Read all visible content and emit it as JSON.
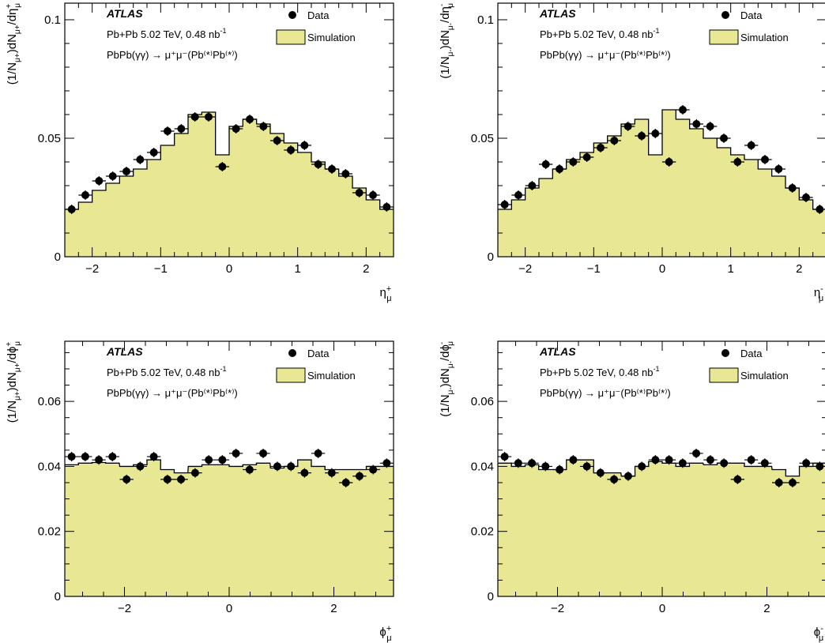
{
  "atlas_label": "ATLAS",
  "lumi_text": "Pb+Pb 5.02 TeV, 0.48 nb",
  "lumi_sup": "-1",
  "process_text": "PbPb(γγ) → μ⁺μ⁻(Pb⁽*⁾Pb⁽*⁾)",
  "legend": {
    "data": "Data",
    "simulation": "Simulation"
  },
  "colors": {
    "simulation_fill": "#E8E894",
    "data": "#000000"
  },
  "chart_data": [
    {
      "type": "histogram",
      "title": "",
      "xlabel": "η_μ^+",
      "ylabel": "(1/N_μ+)dN_μ+/dη_μ^+",
      "xlim": [
        -2.4,
        2.4
      ],
      "ylim": [
        0,
        0.107
      ],
      "xticks": [
        -2,
        -1,
        0,
        1,
        2
      ],
      "yticks": [
        {
          "v": 0,
          "label": "0"
        },
        {
          "v": 0.05,
          "label": "0.05"
        },
        {
          "v": 0.1,
          "label": "0.1"
        }
      ],
      "x_centers": [
        -2.3,
        -2.1,
        -1.9,
        -1.7,
        -1.5,
        -1.3,
        -1.1,
        -0.9,
        -0.7,
        -0.5,
        -0.3,
        -0.1,
        0.1,
        0.3,
        0.5,
        0.7,
        0.9,
        1.1,
        1.3,
        1.5,
        1.7,
        1.9,
        2.1,
        2.3
      ],
      "series": [
        {
          "name": "Simulation",
          "values": [
            0.02,
            0.023,
            0.028,
            0.031,
            0.034,
            0.037,
            0.041,
            0.047,
            0.052,
            0.06,
            0.061,
            0.043,
            0.055,
            0.058,
            0.056,
            0.052,
            0.048,
            0.044,
            0.04,
            0.037,
            0.034,
            0.029,
            0.024,
            0.02
          ]
        },
        {
          "name": "Data",
          "values": [
            0.02,
            0.026,
            0.032,
            0.034,
            0.036,
            0.041,
            0.044,
            0.053,
            0.054,
            0.059,
            0.059,
            0.038,
            0.054,
            0.058,
            0.055,
            0.049,
            0.045,
            0.047,
            0.039,
            0.037,
            0.035,
            0.027,
            0.026,
            0.021
          ]
        }
      ]
    },
    {
      "type": "histogram",
      "title": "",
      "xlabel": "η_μ^-",
      "ylabel": "(1/N_μ-)dN_μ-/dη_μ^-",
      "xlim": [
        -2.4,
        2.4
      ],
      "ylim": [
        0,
        0.107
      ],
      "xticks": [
        -2,
        -1,
        0,
        1,
        2
      ],
      "yticks": [
        {
          "v": 0,
          "label": "0"
        },
        {
          "v": 0.05,
          "label": "0.05"
        },
        {
          "v": 0.1,
          "label": "0.1"
        }
      ],
      "x_centers": [
        -2.3,
        -2.1,
        -1.9,
        -1.7,
        -1.5,
        -1.3,
        -1.1,
        -0.9,
        -0.7,
        -0.5,
        -0.3,
        -0.1,
        0.1,
        0.3,
        0.5,
        0.7,
        0.9,
        1.1,
        1.3,
        1.5,
        1.7,
        1.9,
        2.1,
        2.3
      ],
      "series": [
        {
          "name": "Simulation",
          "values": [
            0.02,
            0.024,
            0.029,
            0.033,
            0.037,
            0.041,
            0.044,
            0.048,
            0.051,
            0.056,
            0.058,
            0.043,
            0.062,
            0.058,
            0.054,
            0.05,
            0.046,
            0.043,
            0.041,
            0.037,
            0.034,
            0.029,
            0.024,
            0.02
          ]
        },
        {
          "name": "Data",
          "values": [
            0.022,
            0.026,
            0.03,
            0.039,
            0.037,
            0.04,
            0.042,
            0.046,
            0.049,
            0.055,
            0.051,
            0.052,
            0.04,
            0.062,
            0.056,
            0.055,
            0.05,
            0.04,
            0.047,
            0.041,
            0.037,
            0.029,
            0.025,
            0.02
          ]
        }
      ]
    },
    {
      "type": "histogram",
      "title": "",
      "xlabel": "ϕ_μ^+",
      "ylabel": "(1/N_μ+)dN_μ+/dϕ_μ^+",
      "xlim": [
        -3.14,
        3.14
      ],
      "ylim": [
        0,
        0.0785
      ],
      "xticks": [
        -2,
        0,
        2
      ],
      "yticks": [
        {
          "v": 0,
          "label": "0"
        },
        {
          "v": 0.02,
          "label": "0.02"
        },
        {
          "v": 0.04,
          "label": "0.04"
        },
        {
          "v": 0.06,
          "label": "0.06"
        }
      ],
      "x_centers": [
        -3.01,
        -2.75,
        -2.49,
        -2.23,
        -1.96,
        -1.7,
        -1.44,
        -1.18,
        -0.92,
        -0.65,
        -0.39,
        -0.13,
        0.13,
        0.39,
        0.65,
        0.92,
        1.18,
        1.44,
        1.7,
        1.96,
        2.23,
        2.49,
        2.75,
        3.01
      ],
      "series": [
        {
          "name": "Simulation",
          "values": [
            0.0405,
            0.041,
            0.0412,
            0.041,
            0.04,
            0.0405,
            0.042,
            0.039,
            0.038,
            0.04,
            0.0405,
            0.0405,
            0.04,
            0.0405,
            0.041,
            0.0395,
            0.04,
            0.042,
            0.04,
            0.039,
            0.039,
            0.039,
            0.04,
            0.04
          ]
        },
        {
          "name": "Data",
          "values": [
            0.043,
            0.043,
            0.042,
            0.043,
            0.036,
            0.04,
            0.043,
            0.036,
            0.036,
            0.038,
            0.042,
            0.042,
            0.044,
            0.039,
            0.044,
            0.04,
            0.04,
            0.038,
            0.044,
            0.038,
            0.035,
            0.037,
            0.039,
            0.041
          ]
        }
      ]
    },
    {
      "type": "histogram",
      "title": "",
      "xlabel": "ϕ_μ^-",
      "ylabel": "(1/N_μ-)dN_μ-/dϕ_μ^-",
      "xlim": [
        -3.14,
        3.14
      ],
      "ylim": [
        0,
        0.0785
      ],
      "xticks": [
        -2,
        0,
        2
      ],
      "yticks": [
        {
          "v": 0,
          "label": "0"
        },
        {
          "v": 0.02,
          "label": "0.02"
        },
        {
          "v": 0.04,
          "label": "0.04"
        },
        {
          "v": 0.06,
          "label": "0.06"
        }
      ],
      "x_centers": [
        -3.01,
        -2.75,
        -2.49,
        -2.23,
        -1.96,
        -1.7,
        -1.44,
        -1.18,
        -0.92,
        -0.65,
        -0.39,
        -0.13,
        0.13,
        0.39,
        0.65,
        0.92,
        1.18,
        1.44,
        1.7,
        1.96,
        2.23,
        2.49,
        2.75,
        3.01
      ],
      "series": [
        {
          "name": "Simulation",
          "values": [
            0.041,
            0.04,
            0.0405,
            0.039,
            0.039,
            0.042,
            0.042,
            0.038,
            0.038,
            0.037,
            0.04,
            0.0415,
            0.041,
            0.04,
            0.041,
            0.0405,
            0.041,
            0.041,
            0.04,
            0.04,
            0.039,
            0.037,
            0.04,
            0.041
          ]
        },
        {
          "name": "Data",
          "values": [
            0.043,
            0.041,
            0.041,
            0.04,
            0.039,
            0.042,
            0.04,
            0.038,
            0.036,
            0.037,
            0.04,
            0.042,
            0.042,
            0.041,
            0.044,
            0.042,
            0.041,
            0.036,
            0.042,
            0.041,
            0.035,
            0.035,
            0.041,
            0.04
          ]
        }
      ]
    }
  ]
}
